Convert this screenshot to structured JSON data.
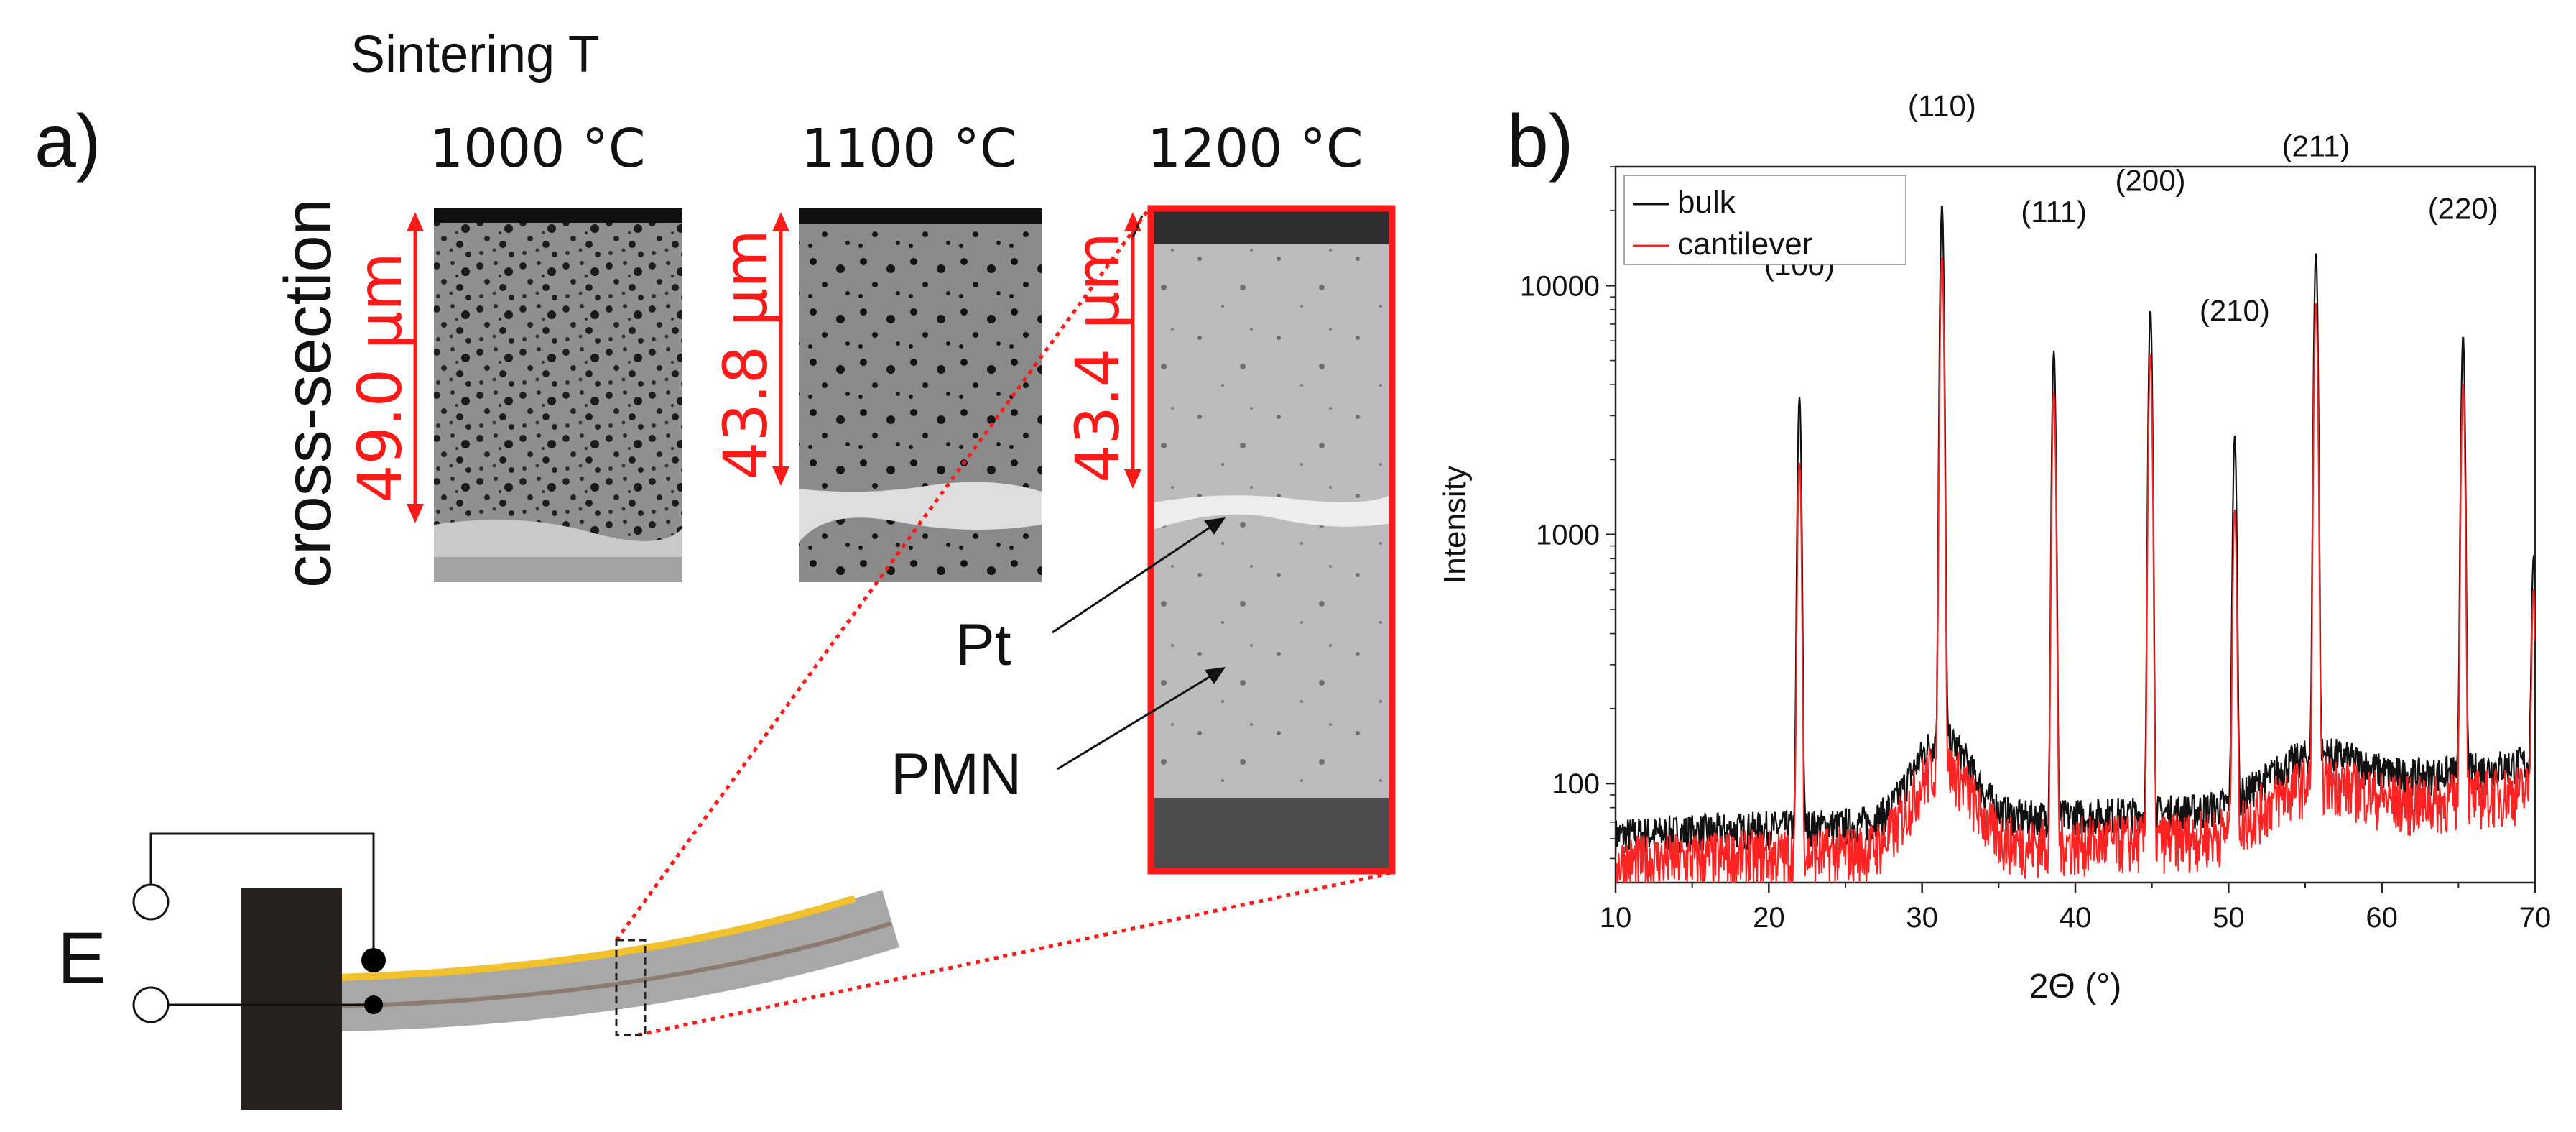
{
  "panel_a": {
    "label": "a)",
    "sintering_header": "Sintering T",
    "side_label": "cross-section",
    "temperatures": [
      "1000 °C",
      "1100 °C",
      "1200 °C"
    ],
    "thicknesses": [
      "49.0 µm",
      "43.8 µm",
      "43.4 µm"
    ],
    "annotations": {
      "pt": "Pt",
      "pmn": "PMN"
    },
    "schematic_label": "E",
    "colors": {
      "highlight": "#ff1a1a",
      "electrode": "#f2c12e",
      "beam": "#a8a8a8",
      "clamp": "#26211e"
    }
  },
  "panel_b": {
    "label": "b)"
  },
  "chart_data": {
    "type": "line",
    "xlabel": "2Θ (°)",
    "ylabel": "Intensity",
    "xlim": [
      10,
      70
    ],
    "ylim": [
      40,
      30000
    ],
    "yscale": "log",
    "xticks": [
      10,
      20,
      30,
      40,
      50,
      60,
      70
    ],
    "yticks": [
      100,
      1000,
      10000
    ],
    "legend_position": "top-left",
    "series": [
      {
        "name": "bulk",
        "color": "#111111",
        "peaks": [
          [
            22.0,
            3500
          ],
          [
            31.3,
            21000
          ],
          [
            38.6,
            5400
          ],
          [
            44.9,
            7900
          ],
          [
            50.4,
            2400
          ],
          [
            55.7,
            13500
          ],
          [
            65.3,
            6200
          ],
          [
            69.9,
            700
          ]
        ]
      },
      {
        "name": "cantilever",
        "color": "#ff2222",
        "peaks": [
          [
            22.0,
            1900
          ],
          [
            31.3,
            13000
          ],
          [
            38.6,
            3700
          ],
          [
            44.9,
            5300
          ],
          [
            50.4,
            1200
          ],
          [
            55.7,
            8500
          ],
          [
            65.3,
            4000
          ],
          [
            69.9,
            500
          ]
        ]
      }
    ],
    "annotations": [
      {
        "text": "(100)",
        "x": 22.0,
        "y": 11000
      },
      {
        "text": "(110)",
        "x": 31.3,
        "y": 48000
      },
      {
        "text": "(111)",
        "x": 38.6,
        "y": 18000
      },
      {
        "text": "(200)",
        "x": 44.9,
        "y": 24000
      },
      {
        "text": "(210)",
        "x": 50.4,
        "y": 7200
      },
      {
        "text": "(211)",
        "x": 55.7,
        "y": 33000
      },
      {
        "text": "(220)",
        "x": 65.3,
        "y": 18500
      }
    ]
  }
}
